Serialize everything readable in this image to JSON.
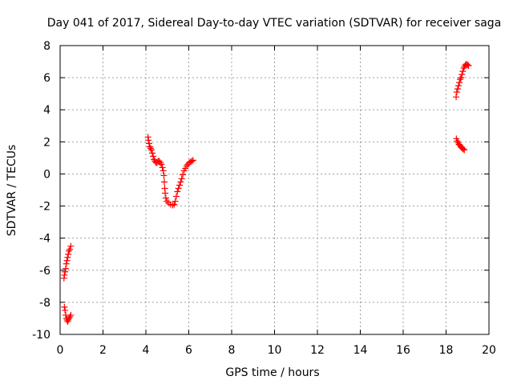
{
  "chart_data": {
    "type": "scatter",
    "title": "Day 041 of 2017, Sidereal Day-to-day VTEC variation (SDTVAR) for receiver saga",
    "xlabel": "GPS time / hours",
    "ylabel": "SDTVAR / TECUs",
    "xlim": [
      0,
      20
    ],
    "ylim": [
      -10,
      8
    ],
    "x_ticks": [
      0,
      2,
      4,
      6,
      8,
      10,
      12,
      14,
      16,
      18,
      20
    ],
    "y_ticks": [
      -10,
      -8,
      -6,
      -4,
      -2,
      0,
      2,
      4,
      6,
      8
    ],
    "grid": true,
    "marker": "+",
    "series": [
      {
        "name": "SDTVAR",
        "color": "#ff0000",
        "points": [
          [
            0.18,
            -6.5
          ],
          [
            0.2,
            -6.3
          ],
          [
            0.23,
            -6.1
          ],
          [
            0.26,
            -5.9
          ],
          [
            0.29,
            -5.6
          ],
          [
            0.32,
            -5.4
          ],
          [
            0.35,
            -5.2
          ],
          [
            0.38,
            -5.0
          ],
          [
            0.41,
            -4.8
          ],
          [
            0.45,
            -4.7
          ],
          [
            0.5,
            -4.5
          ],
          [
            0.2,
            -8.3
          ],
          [
            0.23,
            -8.5
          ],
          [
            0.26,
            -8.8
          ],
          [
            0.29,
            -9.0
          ],
          [
            0.32,
            -9.1
          ],
          [
            0.35,
            -9.2
          ],
          [
            0.38,
            -9.1
          ],
          [
            0.42,
            -9.0
          ],
          [
            0.46,
            -8.9
          ],
          [
            0.5,
            -8.8
          ],
          [
            4.1,
            2.3
          ],
          [
            4.12,
            2.1
          ],
          [
            4.15,
            1.9
          ],
          [
            4.18,
            1.7
          ],
          [
            4.22,
            1.6
          ],
          [
            4.26,
            1.5
          ],
          [
            4.3,
            1.3
          ],
          [
            4.34,
            1.1
          ],
          [
            4.38,
            0.9
          ],
          [
            4.42,
            0.8
          ],
          [
            4.47,
            0.7
          ],
          [
            4.52,
            0.7
          ],
          [
            4.57,
            0.8
          ],
          [
            4.62,
            0.8
          ],
          [
            4.67,
            0.7
          ],
          [
            4.72,
            0.6
          ],
          [
            4.77,
            0.4
          ],
          [
            4.81,
            0.2
          ],
          [
            4.84,
            -0.1
          ],
          [
            4.86,
            -0.5
          ],
          [
            4.88,
            -0.9
          ],
          [
            4.9,
            -1.2
          ],
          [
            4.93,
            -1.5
          ],
          [
            4.98,
            -1.7
          ],
          [
            5.05,
            -1.8
          ],
          [
            5.15,
            -1.9
          ],
          [
            5.25,
            -1.95
          ],
          [
            5.32,
            -1.9
          ],
          [
            5.37,
            -1.7
          ],
          [
            5.42,
            -1.4
          ],
          [
            5.47,
            -1.1
          ],
          [
            5.52,
            -0.9
          ],
          [
            5.57,
            -0.7
          ],
          [
            5.62,
            -0.5
          ],
          [
            5.67,
            -0.3
          ],
          [
            5.72,
            -0.05
          ],
          [
            5.78,
            0.2
          ],
          [
            5.84,
            0.35
          ],
          [
            5.9,
            0.5
          ],
          [
            5.96,
            0.6
          ],
          [
            6.02,
            0.7
          ],
          [
            6.08,
            0.75
          ],
          [
            6.14,
            0.8
          ],
          [
            6.2,
            0.85
          ],
          [
            18.47,
            4.8
          ],
          [
            18.5,
            5.1
          ],
          [
            18.54,
            5.3
          ],
          [
            18.58,
            5.5
          ],
          [
            18.62,
            5.7
          ],
          [
            18.66,
            5.9
          ],
          [
            18.7,
            6.0
          ],
          [
            18.74,
            6.2
          ],
          [
            18.78,
            6.4
          ],
          [
            18.82,
            6.6
          ],
          [
            18.86,
            6.7
          ],
          [
            18.9,
            6.8
          ],
          [
            18.95,
            6.85
          ],
          [
            19.0,
            6.8
          ],
          [
            19.05,
            6.75
          ],
          [
            18.48,
            2.2
          ],
          [
            18.52,
            2.05
          ],
          [
            18.56,
            1.95
          ],
          [
            18.6,
            1.85
          ],
          [
            18.64,
            1.8
          ],
          [
            18.68,
            1.7
          ],
          [
            18.72,
            1.65
          ],
          [
            18.76,
            1.6
          ],
          [
            18.8,
            1.55
          ],
          [
            18.85,
            1.5
          ]
        ]
      }
    ]
  }
}
